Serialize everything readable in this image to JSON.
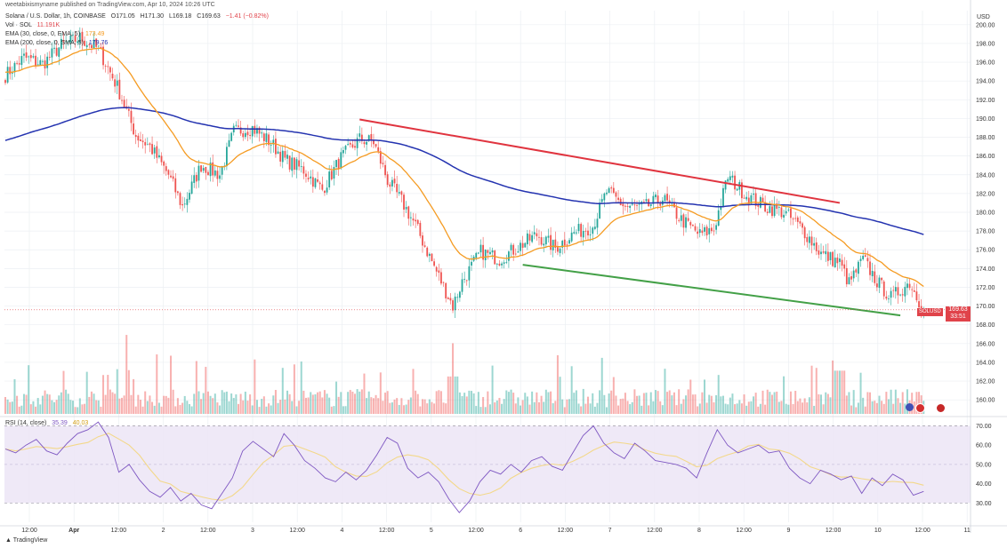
{
  "publisher": "weetabixismyname published on TradingView.com, Apr 10, 2024 10:26 UTC",
  "legend": {
    "main": {
      "name": "Solana / U.S. Dollar, 1h, COINBASE",
      "o": "O171.05",
      "h": "H171.30",
      "l": "L169.18",
      "c": "C169.63",
      "chg": "−1.41 (−0.82%)"
    },
    "vol": {
      "name": "Vol · SOL",
      "value": "11.191K"
    },
    "ema30": {
      "name": "EMA (30, close, 0, EMA, 5)",
      "value": "173.49"
    },
    "ema200": {
      "name": "EMA (200, close, 0, SMA, 5)",
      "value": "179.76"
    },
    "rsi": {
      "name": "RSI (14, close)",
      "value": "35.39",
      "ma": "40.03"
    }
  },
  "price_axis": {
    "unit": "USD",
    "ticks": [
      "200.00",
      "198.00",
      "196.00",
      "194.00",
      "192.00",
      "190.00",
      "188.00",
      "186.00",
      "184.00",
      "182.00",
      "180.00",
      "178.00",
      "176.00",
      "174.00",
      "172.00",
      "170.00",
      "168.00",
      "166.00",
      "164.00",
      "162.00",
      "160.00"
    ]
  },
  "rsi_axis": {
    "ticks": [
      "70.00",
      "60.00",
      "50.00",
      "40.00",
      "30.00"
    ]
  },
  "price_label": {
    "symbol": "SOLUSD",
    "price": "169.63",
    "countdown": "33:51"
  },
  "brand": "TradingView",
  "colors": {
    "up": "#26a69a",
    "down": "#ef5350",
    "ema30": "#f59b22",
    "ema200": "#2433b0",
    "resistance": "#e0343f",
    "support": "#43a047",
    "rsi": "#7e57c2",
    "rsi_ma": "#f3d88a",
    "rsi_band": "#ede7f6"
  },
  "chart_data": [
    {
      "type": "candlestick",
      "title": "Solana / U.S. Dollar, 1h, COINBASE",
      "ylabel": "USD",
      "ylim": [
        158.5,
        201.5
      ],
      "x_labels": [
        "12:00",
        "Apr",
        "12:00",
        "2",
        "12:00",
        "3",
        "12:00",
        "4",
        "12:00",
        "5",
        "12:00",
        "6",
        "12:00",
        "7",
        "12:00",
        "8",
        "12:00",
        "9",
        "12:00",
        "10",
        "12:00",
        "11"
      ],
      "anchors": [
        {
          "t": 0,
          "p": 194.6
        },
        {
          "t": 8,
          "p": 196.5
        },
        {
          "t": 16,
          "p": 195.8
        },
        {
          "t": 24,
          "p": 197.8
        },
        {
          "t": 32,
          "p": 198.6
        },
        {
          "t": 40,
          "p": 197.4
        },
        {
          "t": 48,
          "p": 193.4
        },
        {
          "t": 56,
          "p": 188.2
        },
        {
          "t": 62,
          "p": 187.0
        },
        {
          "t": 70,
          "p": 184.0
        },
        {
          "t": 76,
          "p": 180.6
        },
        {
          "t": 84,
          "p": 185.0
        },
        {
          "t": 92,
          "p": 184.0
        },
        {
          "t": 98,
          "p": 188.6
        },
        {
          "t": 106,
          "p": 189.0
        },
        {
          "t": 114,
          "p": 187.4
        },
        {
          "t": 120,
          "p": 185.6
        },
        {
          "t": 128,
          "p": 184.5
        },
        {
          "t": 136,
          "p": 182.4
        },
        {
          "t": 144,
          "p": 185.8
        },
        {
          "t": 152,
          "p": 187.8
        },
        {
          "t": 158,
          "p": 187.5
        },
        {
          "t": 164,
          "p": 183.4
        },
        {
          "t": 170,
          "p": 181.2
        },
        {
          "t": 176,
          "p": 178.6
        },
        {
          "t": 184,
          "p": 174.2
        },
        {
          "t": 192,
          "p": 170.0
        },
        {
          "t": 196,
          "p": 172.6
        },
        {
          "t": 204,
          "p": 175.8
        },
        {
          "t": 212,
          "p": 175.0
        },
        {
          "t": 220,
          "p": 176.3
        },
        {
          "t": 228,
          "p": 177.6
        },
        {
          "t": 236,
          "p": 176.2
        },
        {
          "t": 244,
          "p": 177.8
        },
        {
          "t": 252,
          "p": 178.5
        },
        {
          "t": 258,
          "p": 182.2
        },
        {
          "t": 266,
          "p": 180.6
        },
        {
          "t": 274,
          "p": 180.5
        },
        {
          "t": 282,
          "p": 181.5
        },
        {
          "t": 290,
          "p": 179.2
        },
        {
          "t": 298,
          "p": 177.6
        },
        {
          "t": 304,
          "p": 178.2
        },
        {
          "t": 310,
          "p": 183.8
        },
        {
          "t": 318,
          "p": 181.8
        },
        {
          "t": 326,
          "p": 180.6
        },
        {
          "t": 334,
          "p": 180.0
        },
        {
          "t": 342,
          "p": 178.2
        },
        {
          "t": 350,
          "p": 175.6
        },
        {
          "t": 358,
          "p": 174.6
        },
        {
          "t": 362,
          "p": 172.4
        },
        {
          "t": 368,
          "p": 175.0
        },
        {
          "t": 374,
          "p": 172.6
        },
        {
          "t": 380,
          "p": 170.9
        },
        {
          "t": 388,
          "p": 172.5
        },
        {
          "t": 394,
          "p": 169.6
        }
      ],
      "volume_scale": {
        "max_label": "volume pane (no axis)"
      },
      "ema30_start": 195.0,
      "ema200_start": 187.6,
      "trendlines": [
        {
          "name": "resistance",
          "from": {
            "t": 152,
            "p": 189.9
          },
          "to": {
            "t": 358,
            "p": 181.0
          }
        },
        {
          "name": "support",
          "from": {
            "t": 222,
            "p": 174.4
          },
          "to": {
            "t": 384,
            "p": 169.0
          }
        }
      ]
    },
    {
      "type": "line",
      "title": "RSI (14, close)",
      "ylim": [
        20,
        73
      ],
      "bands": [
        30,
        70
      ],
      "series": [
        {
          "name": "RSI",
          "values": [
            58,
            56,
            60,
            63,
            57,
            55,
            61,
            66,
            68,
            72,
            64,
            46,
            50,
            42,
            36,
            33,
            38,
            31,
            35,
            29,
            27,
            35,
            43,
            57,
            62,
            58,
            54,
            66,
            60,
            52,
            48,
            43,
            41,
            46,
            42,
            47,
            55,
            64,
            61,
            48,
            43,
            46,
            41,
            32,
            25,
            31,
            41,
            47,
            45,
            50,
            46,
            52,
            54,
            49,
            47,
            56,
            65,
            70,
            61,
            56,
            53,
            61,
            57,
            52,
            51,
            50,
            48,
            43,
            56,
            68,
            60,
            56,
            58,
            60,
            56,
            57,
            48,
            43,
            40,
            47,
            45,
            42,
            44,
            35,
            43,
            39,
            45,
            42,
            34,
            36
          ]
        }
      ]
    }
  ]
}
